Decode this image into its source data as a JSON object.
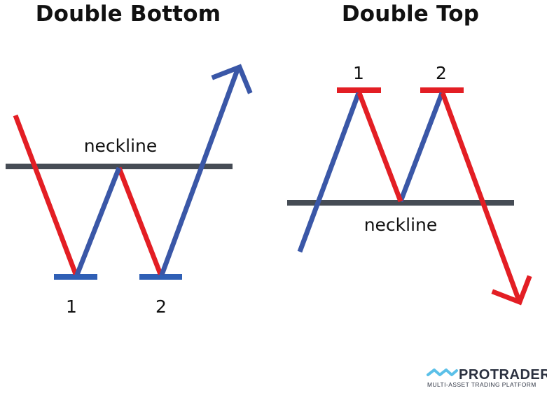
{
  "panels": {
    "left": {
      "title": "Double Bottom",
      "neckline_label": "neckline",
      "marker_1": "1",
      "marker_2": "2"
    },
    "right": {
      "title": "Double Top",
      "neckline_label": "neckline",
      "marker_1": "1",
      "marker_2": "2"
    }
  },
  "brand": {
    "name": "PROTRADER",
    "tagline": "MULTI-ASSET TRADING PLATFORM"
  },
  "colors": {
    "down_leg": "#e31e24",
    "up_leg": "#3a57a7",
    "neckline": "#464c55",
    "support_resistance_bars_bottom": "#2f5fb5",
    "resistance_bars_top": "#e31e24",
    "brand_logo": "#5bc0e8"
  }
}
